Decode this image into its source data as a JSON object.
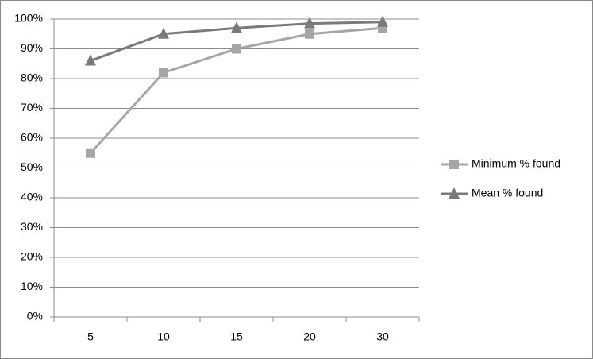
{
  "chart_data": {
    "type": "line",
    "categories": [
      "5",
      "10",
      "15",
      "20",
      "30"
    ],
    "series": [
      {
        "name": "Minimum % found",
        "color": "#a6a6a6",
        "marker": "square",
        "values": [
          55,
          82,
          90,
          95,
          97
        ]
      },
      {
        "name": "Mean % found",
        "color": "#7a7a7a",
        "marker": "triangle",
        "values": [
          86,
          95,
          97,
          98.5,
          99
        ]
      }
    ],
    "ylim": [
      0,
      100
    ],
    "yticks": [
      {
        "value": 0,
        "label": "0%"
      },
      {
        "value": 10,
        "label": "10%"
      },
      {
        "value": 20,
        "label": "20%"
      },
      {
        "value": 30,
        "label": "30%"
      },
      {
        "value": 40,
        "label": "40%"
      },
      {
        "value": 50,
        "label": "50%"
      },
      {
        "value": 60,
        "label": "60%"
      },
      {
        "value": 70,
        "label": "70%"
      },
      {
        "value": 80,
        "label": "80%"
      },
      {
        "value": 90,
        "label": "90%"
      },
      {
        "value": 100,
        "label": "100%"
      }
    ],
    "grid": true,
    "legend": "right"
  }
}
